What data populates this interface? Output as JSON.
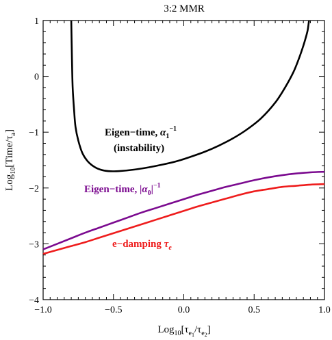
{
  "chart_data": {
    "type": "line",
    "title": "3:2 MMR",
    "xlabel": "Log10[τe1/τe2]",
    "ylabel": "Log10[Time/τa]",
    "xlim": [
      -1.0,
      1.0
    ],
    "ylim": [
      -4,
      1
    ],
    "xticks": [
      -1.0,
      -0.5,
      0.0,
      0.5,
      1.0
    ],
    "xtick_labels": [
      "−1.0",
      "−0.5",
      "0.0",
      "0.5",
      "1.0"
    ],
    "yticks": [
      -4,
      -3,
      -2,
      -1,
      0,
      1
    ],
    "ytick_labels": [
      "−4",
      "−3",
      "−2",
      "−1",
      "0",
      "1"
    ],
    "grid": false,
    "series": [
      {
        "color": "#000000",
        "x": [
          -0.8,
          -0.795,
          -0.79,
          -0.78,
          -0.77,
          -0.75,
          -0.72,
          -0.68,
          -0.63,
          -0.58,
          -0.52,
          -0.45,
          -0.35,
          -0.25,
          -0.15,
          -0.05,
          0.05,
          0.15,
          0.25,
          0.35,
          0.45,
          0.55,
          0.65,
          0.72,
          0.78,
          0.82,
          0.85,
          0.87,
          0.88,
          0.885,
          0.89
        ],
        "y": [
          1.0,
          0.3,
          -0.2,
          -0.6,
          -0.9,
          -1.15,
          -1.38,
          -1.53,
          -1.63,
          -1.68,
          -1.7,
          -1.695,
          -1.67,
          -1.63,
          -1.58,
          -1.52,
          -1.44,
          -1.35,
          -1.24,
          -1.11,
          -0.95,
          -0.75,
          -0.47,
          -0.2,
          0.08,
          0.33,
          0.55,
          0.72,
          0.82,
          0.9,
          1.0
        ]
      },
      {
        "color": "#7b0a8f",
        "x": [
          -1.0,
          -0.9,
          -0.8,
          -0.7,
          -0.6,
          -0.5,
          -0.4,
          -0.3,
          -0.2,
          -0.1,
          0.0,
          0.1,
          0.2,
          0.3,
          0.4,
          0.5,
          0.6,
          0.7,
          0.8,
          0.9,
          1.0
        ],
        "y": [
          -3.1,
          -3.0,
          -2.9,
          -2.8,
          -2.71,
          -2.62,
          -2.53,
          -2.44,
          -2.36,
          -2.28,
          -2.2,
          -2.12,
          -2.05,
          -1.98,
          -1.92,
          -1.86,
          -1.81,
          -1.77,
          -1.74,
          -1.72,
          -1.71
        ]
      },
      {
        "color": "#ee1c1c",
        "x": [
          -1.0,
          -0.9,
          -0.8,
          -0.7,
          -0.6,
          -0.5,
          -0.4,
          -0.3,
          -0.2,
          -0.1,
          0.0,
          0.1,
          0.2,
          0.3,
          0.4,
          0.5,
          0.6,
          0.7,
          0.8,
          0.9,
          1.0
        ],
        "y": [
          -3.18,
          -3.11,
          -3.04,
          -2.97,
          -2.89,
          -2.81,
          -2.73,
          -2.65,
          -2.57,
          -2.49,
          -2.41,
          -2.33,
          -2.26,
          -2.19,
          -2.12,
          -2.06,
          -2.02,
          -1.98,
          -1.96,
          -1.94,
          -1.93
        ]
      }
    ],
    "annotations": [
      {
        "text": "Eigen−time, α1−1",
        "color": "#000000",
        "x": -0.47,
        "y": -1.05
      },
      {
        "text": "(instability)",
        "color": "#000000",
        "x": -0.35,
        "y": -1.45
      },
      {
        "text": "Eigen−time, |α0|−1",
        "color": "#7b0a8f",
        "x": -0.69,
        "y": -2.1
      },
      {
        "text": "e−damping τe",
        "color": "#ee1c1c",
        "x": -0.5,
        "y": -3.07
      }
    ]
  }
}
